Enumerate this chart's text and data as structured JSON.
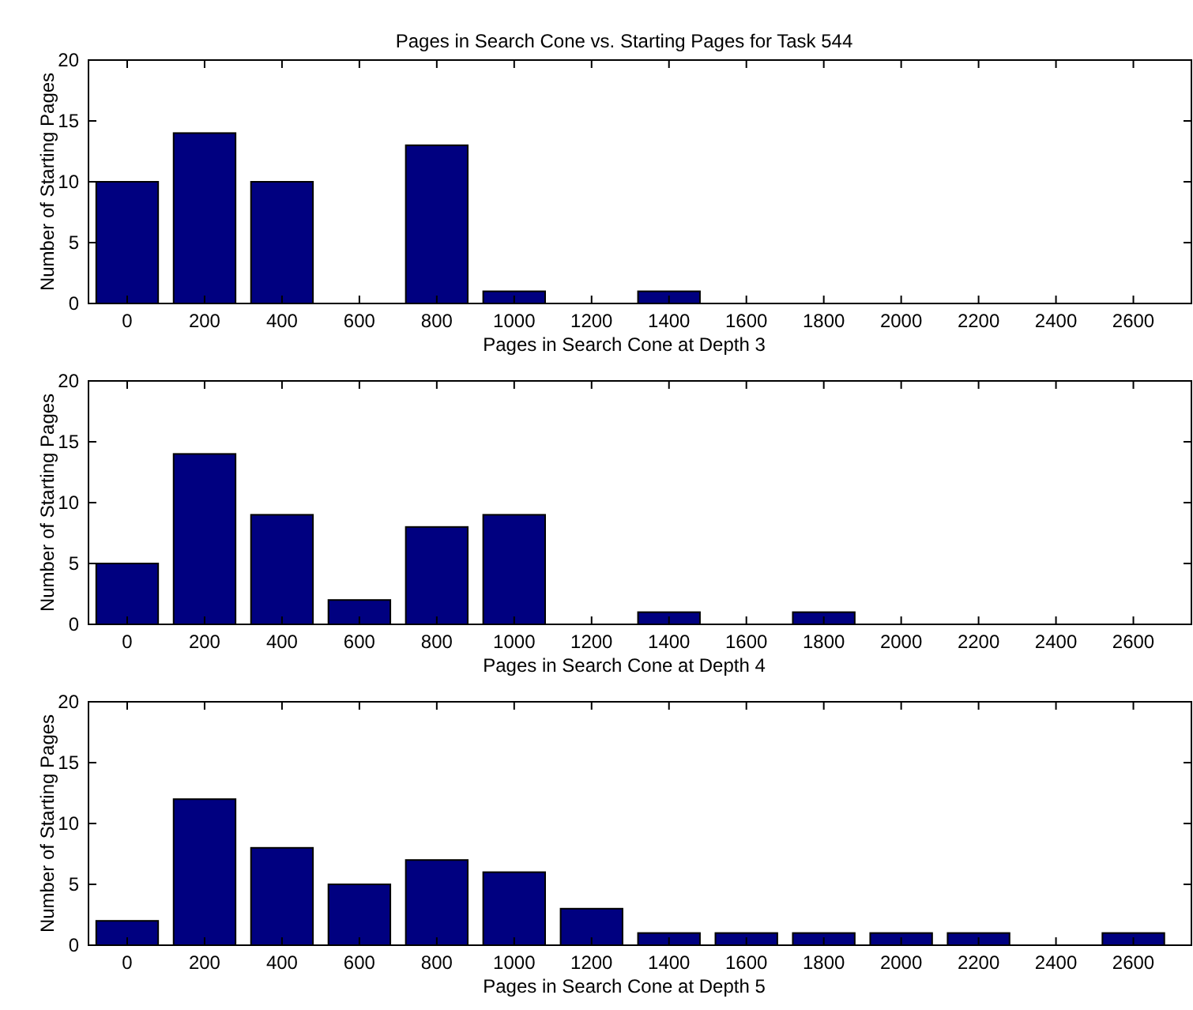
{
  "chart_data": [
    {
      "type": "bar",
      "title": "Pages in Search Cone vs. Starting Pages for Task 544",
      "xlabel": "Pages in Search Cone at Depth 3",
      "ylabel": "Number of Starting Pages",
      "x": [
        0,
        200,
        400,
        600,
        800,
        1000,
        1200,
        1400,
        1600,
        1800,
        2000,
        2200,
        2400,
        2600
      ],
      "values": [
        10,
        14,
        10,
        0,
        13,
        1,
        0,
        1,
        0,
        0,
        0,
        0,
        0,
        0
      ],
      "color": "#000080",
      "xlim": [
        -100,
        2750
      ],
      "xticks": [
        0,
        200,
        400,
        600,
        800,
        1000,
        1200,
        1400,
        1600,
        1800,
        2000,
        2200,
        2400,
        2600
      ],
      "ylim": [
        0,
        20
      ],
      "yticks": [
        0,
        5,
        10,
        15,
        20
      ],
      "grid": false
    },
    {
      "type": "bar",
      "xlabel": "Pages in Search Cone at Depth 4",
      "ylabel": "Number of Starting Pages",
      "x": [
        0,
        200,
        400,
        600,
        800,
        1000,
        1200,
        1400,
        1600,
        1800,
        2000,
        2200,
        2400,
        2600
      ],
      "values": [
        5,
        14,
        9,
        2,
        8,
        9,
        0,
        1,
        0,
        1,
        0,
        0,
        0,
        0
      ],
      "color": "#000080",
      "xlim": [
        -100,
        2750
      ],
      "xticks": [
        0,
        200,
        400,
        600,
        800,
        1000,
        1200,
        1400,
        1600,
        1800,
        2000,
        2200,
        2400,
        2600
      ],
      "ylim": [
        0,
        20
      ],
      "yticks": [
        0,
        5,
        10,
        15,
        20
      ],
      "grid": false
    },
    {
      "type": "bar",
      "xlabel": "Pages in Search Cone at Depth 5",
      "ylabel": "Number of Starting Pages",
      "x": [
        0,
        200,
        400,
        600,
        800,
        1000,
        1200,
        1400,
        1600,
        1800,
        2000,
        2200,
        2400,
        2600
      ],
      "values": [
        2,
        12,
        8,
        5,
        7,
        6,
        3,
        1,
        1,
        1,
        1,
        1,
        0,
        1
      ],
      "color": "#000080",
      "xlim": [
        -100,
        2750
      ],
      "xticks": [
        0,
        200,
        400,
        600,
        800,
        1000,
        1200,
        1400,
        1600,
        1800,
        2000,
        2200,
        2400,
        2600
      ],
      "ylim": [
        0,
        20
      ],
      "yticks": [
        0,
        5,
        10,
        15,
        20
      ],
      "grid": false
    }
  ]
}
